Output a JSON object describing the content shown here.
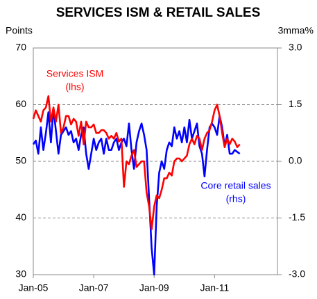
{
  "chart_data": {
    "type": "line",
    "title": "SERVICES ISM & RETAIL SALES",
    "ylabel": "Points",
    "y2label": "3mma%",
    "annotations": [
      "Services ISM",
      "(lhs)",
      "Core retail sales",
      "(rhs)"
    ],
    "categories": [
      "Jan-05",
      null,
      null,
      null,
      null,
      null,
      null,
      null,
      null,
      null,
      null,
      null,
      null,
      null,
      null,
      null,
      null,
      null,
      null,
      null,
      null,
      null,
      null,
      null,
      "Jan-07",
      null,
      null,
      null,
      null,
      null,
      null,
      null,
      null,
      null,
      null,
      null,
      null,
      null,
      null,
      null,
      null,
      null,
      null,
      null,
      null,
      null,
      null,
      null,
      "Jan-09",
      null,
      null,
      null,
      null,
      null,
      null,
      null,
      null,
      null,
      null,
      null,
      null,
      null,
      null,
      null,
      null,
      null,
      null,
      null,
      null,
      null,
      null,
      null,
      "Jan-11",
      null,
      null,
      null,
      null,
      null,
      null,
      null,
      null,
      null,
      null
    ],
    "series": [
      {
        "name": "Services ISM (lhs)",
        "color": "#ff0000",
        "axis": "y",
        "values": [
          57.5,
          59,
          58,
          57,
          59,
          59.5,
          61.5,
          57,
          59.5,
          57,
          60,
          55,
          56,
          58,
          58,
          56.5,
          57.5,
          57,
          54.5,
          57,
          53,
          57,
          56,
          56,
          56.5,
          55,
          55,
          55.5,
          55.5,
          55,
          54,
          54.5,
          54,
          55,
          53.5,
          54,
          45.5,
          50,
          49.5,
          51,
          52,
          49,
          49.5,
          50,
          50,
          44.5,
          42,
          38,
          42,
          44,
          43.5,
          45,
          47,
          47,
          48,
          47.5,
          50,
          50.5,
          50.5,
          50,
          50.5,
          51,
          53,
          54,
          53,
          54.5,
          54,
          52,
          54,
          55,
          55.5,
          57,
          59,
          60,
          58,
          55,
          52.5,
          54,
          53,
          54,
          53.5,
          52.5,
          53
        ]
      },
      {
        "name": "Core retail sales (rhs)",
        "color": "#0000ff",
        "axis": "y2",
        "values": [
          0.45,
          0.55,
          0.2,
          0.9,
          0.3,
          0.75,
          1.3,
          0.5,
          1.4,
          0.8,
          0.2,
          0.7,
          0.8,
          0.9,
          0.7,
          0.8,
          0.5,
          0.6,
          0.3,
          0.7,
          0.9,
          0.2,
          -0.2,
          0.2,
          0.6,
          0.3,
          0.5,
          0.6,
          0.2,
          0.6,
          0.3,
          0.3,
          0.5,
          0.6,
          0.3,
          0.5,
          0.6,
          0.4,
          1.0,
          0.3,
          -0.2,
          0.5,
          0.8,
          1.0,
          0.7,
          0.3,
          -1.0,
          -2.3,
          -3.0,
          -1.2,
          -0.3,
          0.0,
          -0.2,
          0.3,
          0.5,
          0.4,
          0.9,
          0.6,
          0.8,
          0.5,
          0.9,
          0.5,
          1.1,
          0.6,
          0.8,
          1.0,
          0.4,
          0.2,
          -0.4,
          0.3,
          0.9,
          1.0,
          0.9,
          0.7,
          1.2,
          0.9,
          0.4,
          0.7,
          0.2,
          0.2,
          0.3,
          0.25,
          0.2
        ]
      }
    ],
    "ylim": [
      30,
      70
    ],
    "yticks": [
      30,
      40,
      50,
      60,
      70
    ],
    "y2lim": [
      -3,
      3
    ],
    "y2ticks": [
      {
        "value": 3,
        "label": "3.0"
      },
      {
        "value": 1.5,
        "label": "1.5"
      },
      {
        "value": 0,
        "label": "0.0"
      },
      {
        "value": -1.5,
        "label": "-1.5"
      },
      {
        "value": -3,
        "label": "-3.0"
      }
    ],
    "grid": true
  }
}
